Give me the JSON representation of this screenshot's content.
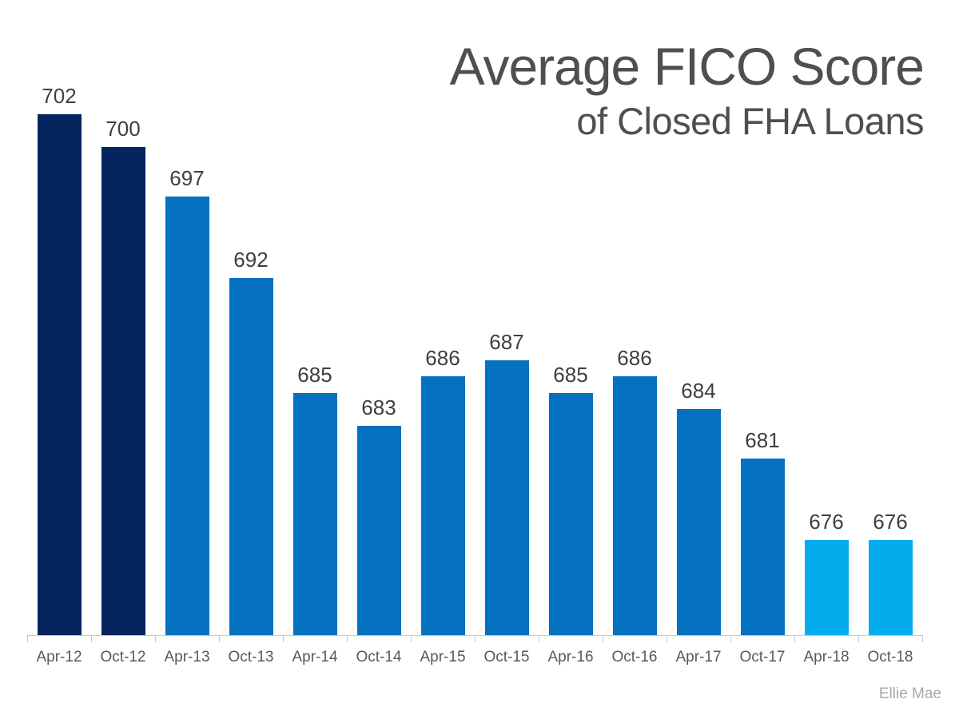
{
  "title": {
    "line1": "Average FICO Score",
    "line2": "of Closed FHA Loans",
    "color": "#4f4f4f"
  },
  "attribution": "Ellie Mae",
  "palette": {
    "navy": "#05235f",
    "blue": "#0571c1",
    "light_blue": "#03aced",
    "axis": "#c9c9c9",
    "value_label": "#3f3f3f",
    "tick_label": "#595959",
    "attribution_color": "#a8a8a8"
  },
  "chart_data": {
    "type": "bar",
    "title": "Average FICO Score",
    "subtitle": "of Closed FHA Loans",
    "categories": [
      "Apr-12",
      "Oct-12",
      "Apr-13",
      "Oct-13",
      "Apr-14",
      "Oct-14",
      "Apr-15",
      "Oct-15",
      "Apr-16",
      "Oct-16",
      "Apr-17",
      "Oct-17",
      "Apr-18",
      "Oct-18"
    ],
    "values": [
      702,
      700,
      697,
      692,
      685,
      683,
      686,
      687,
      685,
      686,
      684,
      681,
      676,
      676
    ],
    "bar_colors": [
      "navy",
      "navy",
      "blue",
      "blue",
      "blue",
      "blue",
      "blue",
      "blue",
      "blue",
      "blue",
      "blue",
      "blue",
      "light_blue",
      "light_blue"
    ],
    "data_labels": true,
    "xlabel": "",
    "ylabel": "",
    "ylim": [
      670,
      705
    ],
    "grid": false,
    "legend": false,
    "source_label": "Ellie Mae"
  }
}
